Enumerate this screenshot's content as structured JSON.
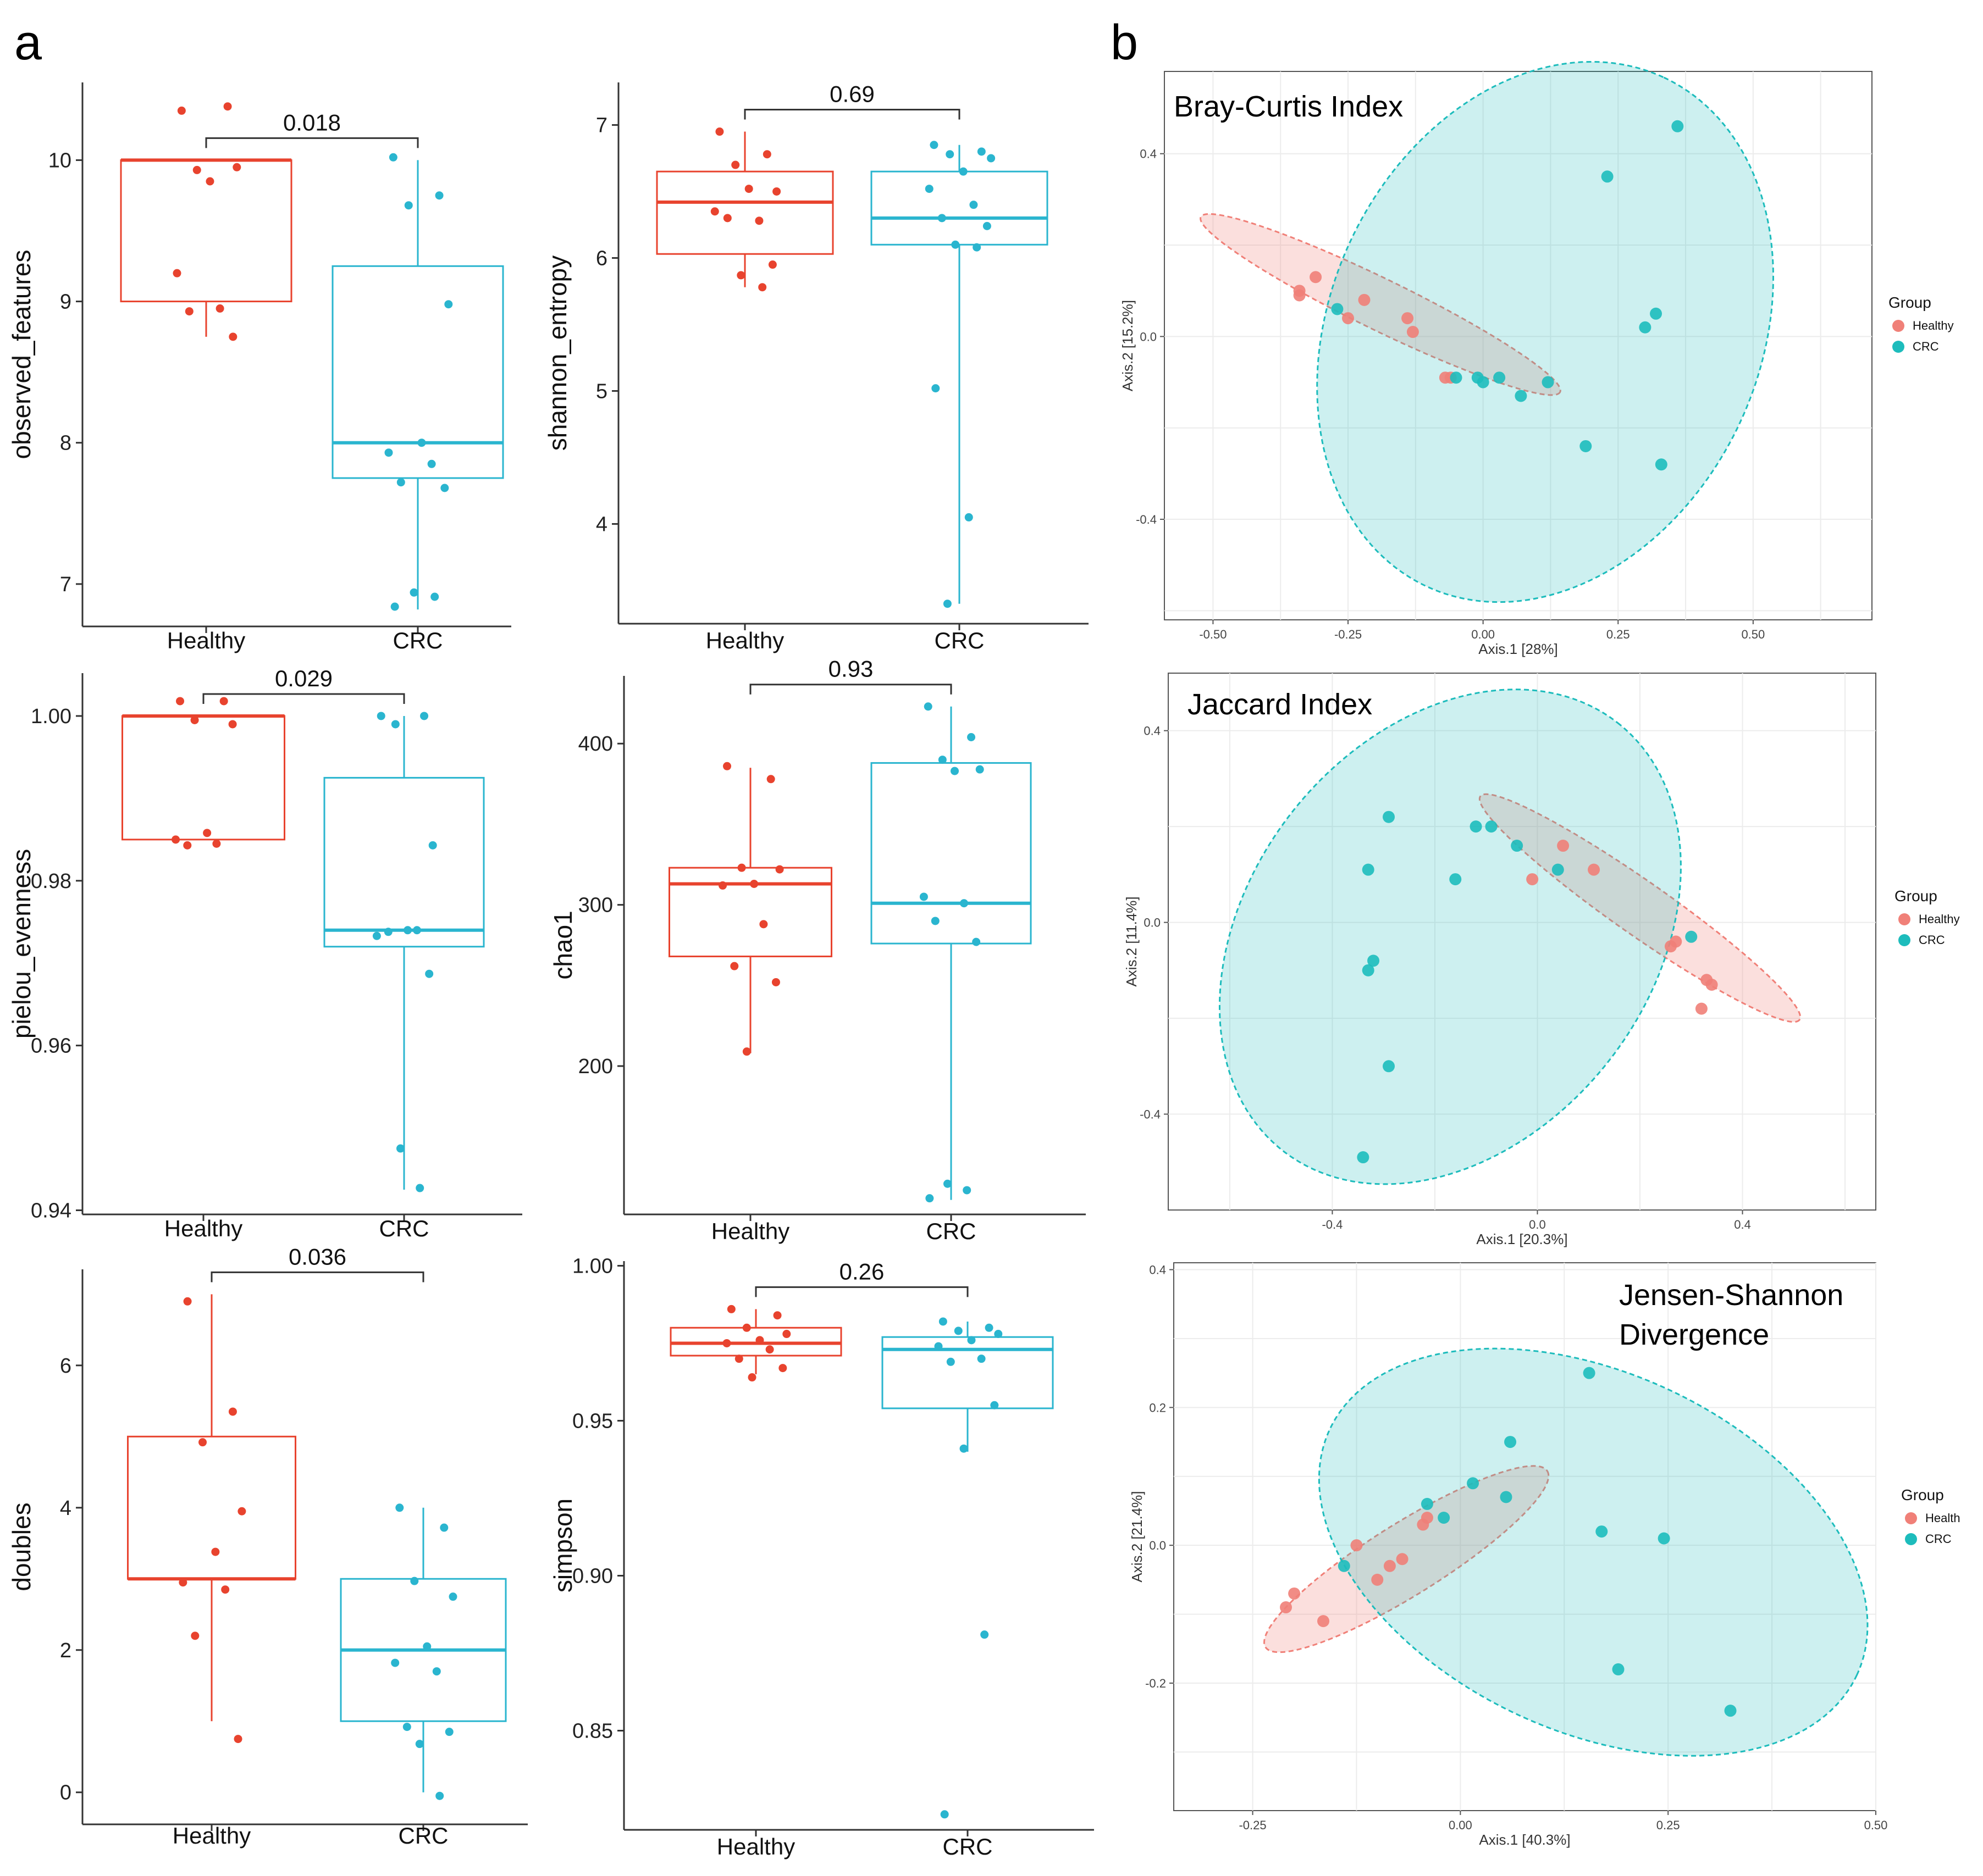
{
  "panel_labels": [
    "a",
    "b"
  ],
  "colors": {
    "healthy": "#e8432e",
    "crc": "#2ab5cf",
    "healthy_pcoa": "#f08078",
    "crc_pcoa": "#1dbcbc"
  },
  "chart_data": [
    {
      "type": "box",
      "id": "observed_features",
      "ylabel": "observed_features",
      "categories": [
        "Healthy",
        "CRC"
      ],
      "ylim": [
        6.7,
        10.55
      ],
      "yticks": [
        7,
        8,
        9,
        10
      ],
      "pvalue": "0.018",
      "boxes": [
        {
          "q1": 9.0,
          "median": 10.0,
          "q3": 10.0,
          "min": 8.75,
          "max": 10.0
        },
        {
          "q1": 7.75,
          "median": 8.0,
          "q3": 9.25,
          "min": 6.82,
          "max": 10.0
        }
      ],
      "points": [
        [
          10.35,
          10.38,
          9.93,
          9.95,
          9.85,
          9.2,
          8.95,
          8.93,
          8.75
        ],
        [
          10.02,
          9.75,
          9.68,
          8.98,
          8.0,
          7.93,
          7.85,
          7.72,
          7.68,
          6.94,
          6.91,
          6.84
        ]
      ]
    },
    {
      "type": "box",
      "id": "shannon_entropy",
      "ylabel": "shannon_entropy",
      "categories": [
        "Healthy",
        "CRC"
      ],
      "ylim": [
        3.25,
        7.32
      ],
      "yticks": [
        4,
        5,
        6,
        7
      ],
      "pvalue": "0.69",
      "boxes": [
        {
          "q1": 6.03,
          "median": 6.42,
          "q3": 6.65,
          "min": 5.78,
          "max": 6.95
        },
        {
          "q1": 6.1,
          "median": 6.3,
          "q3": 6.65,
          "min": 3.4,
          "max": 6.85
        }
      ],
      "points": [
        [
          6.95,
          6.78,
          6.7,
          6.5,
          6.52,
          6.35,
          6.28,
          6.3,
          5.95,
          5.87,
          5.78
        ],
        [
          6.85,
          6.8,
          6.78,
          6.75,
          6.65,
          6.52,
          6.4,
          6.3,
          6.24,
          6.1,
          6.08,
          5.02,
          4.05,
          3.4
        ]
      ]
    },
    {
      "type": "box",
      "id": "pielou_evenness",
      "ylabel": "pielou_evenness",
      "categories": [
        "Healthy",
        "CRC"
      ],
      "ylim": [
        0.9395,
        1.0052
      ],
      "yticks": [
        0.94,
        0.96,
        0.98,
        1.0
      ],
      "ytick_labels": [
        "0.94",
        "0.96",
        "0.98",
        "1.00"
      ],
      "pvalue": "0.029",
      "boxes": [
        {
          "q1": 0.985,
          "median": 1.0,
          "q3": 1.0,
          "min": 0.985,
          "max": 1.0
        },
        {
          "q1": 0.972,
          "median": 0.974,
          "q3": 0.9925,
          "min": 0.9425,
          "max": 1.0
        }
      ],
      "points": [
        [
          1.0018,
          1.0018,
          0.9995,
          0.999,
          0.9858,
          0.985,
          0.9845,
          0.9843
        ],
        [
          1.0,
          1.0,
          0.999,
          0.9843,
          0.974,
          0.9733,
          0.974,
          0.9738,
          0.9687,
          0.9475,
          0.9427
        ]
      ]
    },
    {
      "type": "box",
      "id": "chao1",
      "ylabel": "chao1",
      "categories": [
        "Healthy",
        "CRC"
      ],
      "ylim": [
        108,
        442
      ],
      "yticks": [
        200,
        300,
        400
      ],
      "pvalue": "0.93",
      "boxes": [
        {
          "q1": 268,
          "median": 313,
          "q3": 323,
          "min": 208,
          "max": 385
        },
        {
          "q1": 276,
          "median": 301,
          "q3": 388,
          "min": 117,
          "max": 423
        }
      ],
      "points": [
        [
          386,
          378,
          323,
          322,
          313,
          312,
          288,
          262,
          252,
          209
        ],
        [
          423,
          404,
          390,
          384,
          383,
          305,
          301,
          290,
          277,
          127,
          123,
          118
        ]
      ]
    },
    {
      "type": "box",
      "id": "doubles",
      "ylabel": "doubles",
      "categories": [
        "Healthy",
        "CRC"
      ],
      "ylim": [
        -0.45,
        7.35
      ],
      "yticks": [
        0,
        2,
        4,
        6
      ],
      "pvalue": "0.036",
      "boxes": [
        {
          "q1": 3.0,
          "median": 3.0,
          "q3": 5.0,
          "min": 1.0,
          "max": 7.0
        },
        {
          "q1": 1.0,
          "median": 2.0,
          "q3": 3.0,
          "min": 0.0,
          "max": 4.0
        }
      ],
      "points": [
        [
          6.9,
          5.35,
          4.92,
          3.95,
          3.38,
          2.95,
          2.85,
          2.2,
          0.75
        ],
        [
          4.0,
          3.72,
          2.97,
          2.75,
          2.05,
          1.82,
          1.7,
          0.92,
          0.85,
          0.68,
          -0.05
        ]
      ]
    },
    {
      "type": "box",
      "id": "simpson",
      "ylabel": "simpson",
      "categories": [
        "Healthy",
        "CRC"
      ],
      "ylim": [
        0.818,
        1.0015
      ],
      "yticks": [
        0.85,
        0.9,
        0.95,
        1.0
      ],
      "ytick_labels": [
        "0.85",
        "0.90",
        "0.95",
        "1.00"
      ],
      "pvalue": "0.26",
      "boxes": [
        {
          "q1": 0.971,
          "median": 0.975,
          "q3": 0.98,
          "min": 0.965,
          "max": 0.986
        },
        {
          "q1": 0.954,
          "median": 0.973,
          "q3": 0.977,
          "min": 0.94,
          "max": 0.982
        }
      ],
      "points": [
        [
          0.986,
          0.984,
          0.98,
          0.978,
          0.976,
          0.975,
          0.973,
          0.97,
          0.967,
          0.964
        ],
        [
          0.982,
          0.98,
          0.979,
          0.978,
          0.976,
          0.974,
          0.97,
          0.969,
          0.955,
          0.941,
          0.881,
          0.823
        ]
      ]
    },
    {
      "type": "scatter",
      "id": "bray_curtis",
      "title": "Bray-Curtis Index",
      "xlabel": "Axis.1   [28%]",
      "ylabel": "Axis.2   [15.2%]",
      "xlim": [
        -0.59,
        0.72
      ],
      "ylim": [
        -0.62,
        0.58
      ],
      "xticks": [
        -0.5,
        -0.25,
        0.0,
        0.25,
        0.5
      ],
      "xtick_labels": [
        "-0.50",
        "-0.25",
        "0.00",
        "0.25",
        "0.50"
      ],
      "yticks": [
        -0.4,
        0.0,
        0.4
      ],
      "ytick_labels": [
        "-0.4",
        "0.0",
        "0.4"
      ],
      "legend_title": "Group",
      "legend": [
        "Healthy",
        "CRC"
      ],
      "ellipses": [
        {
          "cx": -0.19,
          "cy": 0.07,
          "rx": 0.37,
          "ry": 0.056,
          "angle_deg": 26
        },
        {
          "cx": 0.115,
          "cy": 0.01,
          "rx": 0.52,
          "ry": 0.47,
          "angle_deg": -65
        }
      ],
      "series": [
        {
          "name": "Healthy",
          "x": [
            -0.34,
            -0.34,
            -0.31,
            -0.25,
            -0.22,
            -0.14,
            -0.13,
            -0.07,
            -0.06
          ],
          "y": [
            0.1,
            0.09,
            0.13,
            0.04,
            0.08,
            0.04,
            0.01,
            -0.09,
            -0.09
          ]
        },
        {
          "name": "CRC",
          "x": [
            -0.27,
            -0.05,
            -0.01,
            0.0,
            0.03,
            0.07,
            0.12,
            0.19,
            0.23,
            0.3,
            0.32,
            0.33,
            0.36
          ],
          "y": [
            0.06,
            -0.09,
            -0.09,
            -0.1,
            -0.09,
            -0.13,
            -0.1,
            -0.24,
            0.35,
            0.02,
            0.05,
            -0.28,
            0.46
          ]
        }
      ]
    },
    {
      "type": "scatter",
      "id": "jaccard",
      "title": "Jaccard Index",
      "xlabel": "Axis.1   [20.3%]",
      "ylabel": "Axis.2   [11.4%]",
      "xlim": [
        -0.72,
        0.66
      ],
      "ylim": [
        -0.6,
        0.52
      ],
      "xticks": [
        -0.4,
        0.0,
        0.4
      ],
      "xtick_labels": [
        "-0.4",
        "0.0",
        "0.4"
      ],
      "yticks": [
        -0.4,
        0.0,
        0.4
      ],
      "ytick_labels": [
        "-0.4",
        "0.0",
        "0.4"
      ],
      "legend_title": "Group",
      "legend": [
        "Healthy",
        "CRC"
      ],
      "ellipses": [
        {
          "cx": 0.2,
          "cy": 0.03,
          "rx": 0.38,
          "ry": 0.056,
          "angle_deg": 35
        },
        {
          "cx": -0.17,
          "cy": -0.03,
          "rx": 0.53,
          "ry": 0.42,
          "angle_deg": -52
        }
      ],
      "series": [
        {
          "name": "Healthy",
          "x": [
            -0.01,
            0.05,
            0.11,
            0.26,
            0.27,
            0.33,
            0.34,
            0.32
          ],
          "y": [
            0.09,
            0.16,
            0.11,
            -0.05,
            -0.04,
            -0.12,
            -0.13,
            -0.18
          ]
        },
        {
          "name": "CRC",
          "x": [
            -0.29,
            -0.16,
            -0.33,
            -0.33,
            -0.32,
            -0.29,
            -0.34,
            -0.12,
            -0.09,
            -0.04,
            0.04,
            0.3
          ],
          "y": [
            0.22,
            0.09,
            0.11,
            -0.1,
            -0.08,
            -0.3,
            -0.49,
            0.2,
            0.2,
            0.16,
            0.11,
            -0.03
          ]
        }
      ]
    },
    {
      "type": "scatter",
      "id": "jensen_shannon",
      "title": "Jensen-Shannon Divergence",
      "title_lines": [
        "Jensen-Shannon",
        "Divergence"
      ],
      "xlabel": "Axis.1   [40.3%]",
      "ylabel": "Axis.2   [21.4%]",
      "xlim": [
        -0.345,
        0.5
      ],
      "ylim": [
        -0.385,
        0.41
      ],
      "xticks": [
        -0.25,
        0.0,
        0.25,
        0.5
      ],
      "xtick_labels": [
        "-0.25",
        "0.00",
        "0.25",
        "0.50"
      ],
      "yticks": [
        -0.2,
        0.0,
        0.2,
        0.4
      ],
      "ytick_labels": [
        "-0.2",
        "0.0",
        "0.2",
        "0.4"
      ],
      "legend_title": "Group",
      "legend": [
        "Health",
        "CRC"
      ],
      "ellipses": [
        {
          "cx": -0.065,
          "cy": -0.02,
          "rx": 0.2,
          "ry": 0.052,
          "angle_deg": -32
        },
        {
          "cx": 0.16,
          "cy": -0.01,
          "rx": 0.35,
          "ry": 0.26,
          "angle_deg": 25
        }
      ],
      "series": [
        {
          "name": "Health",
          "x": [
            -0.21,
            -0.2,
            -0.165,
            -0.125,
            -0.1,
            -0.085,
            -0.07,
            -0.045,
            -0.04
          ],
          "y": [
            -0.09,
            -0.07,
            -0.11,
            0.0,
            -0.05,
            -0.03,
            -0.02,
            0.03,
            0.04
          ]
        },
        {
          "name": "CRC",
          "x": [
            -0.14,
            -0.04,
            -0.02,
            0.015,
            0.055,
            0.06,
            0.155,
            0.17,
            0.245,
            0.19,
            0.325
          ],
          "y": [
            -0.03,
            0.06,
            0.04,
            0.09,
            0.07,
            0.15,
            0.25,
            0.02,
            0.01,
            -0.18,
            -0.24
          ]
        }
      ]
    }
  ]
}
